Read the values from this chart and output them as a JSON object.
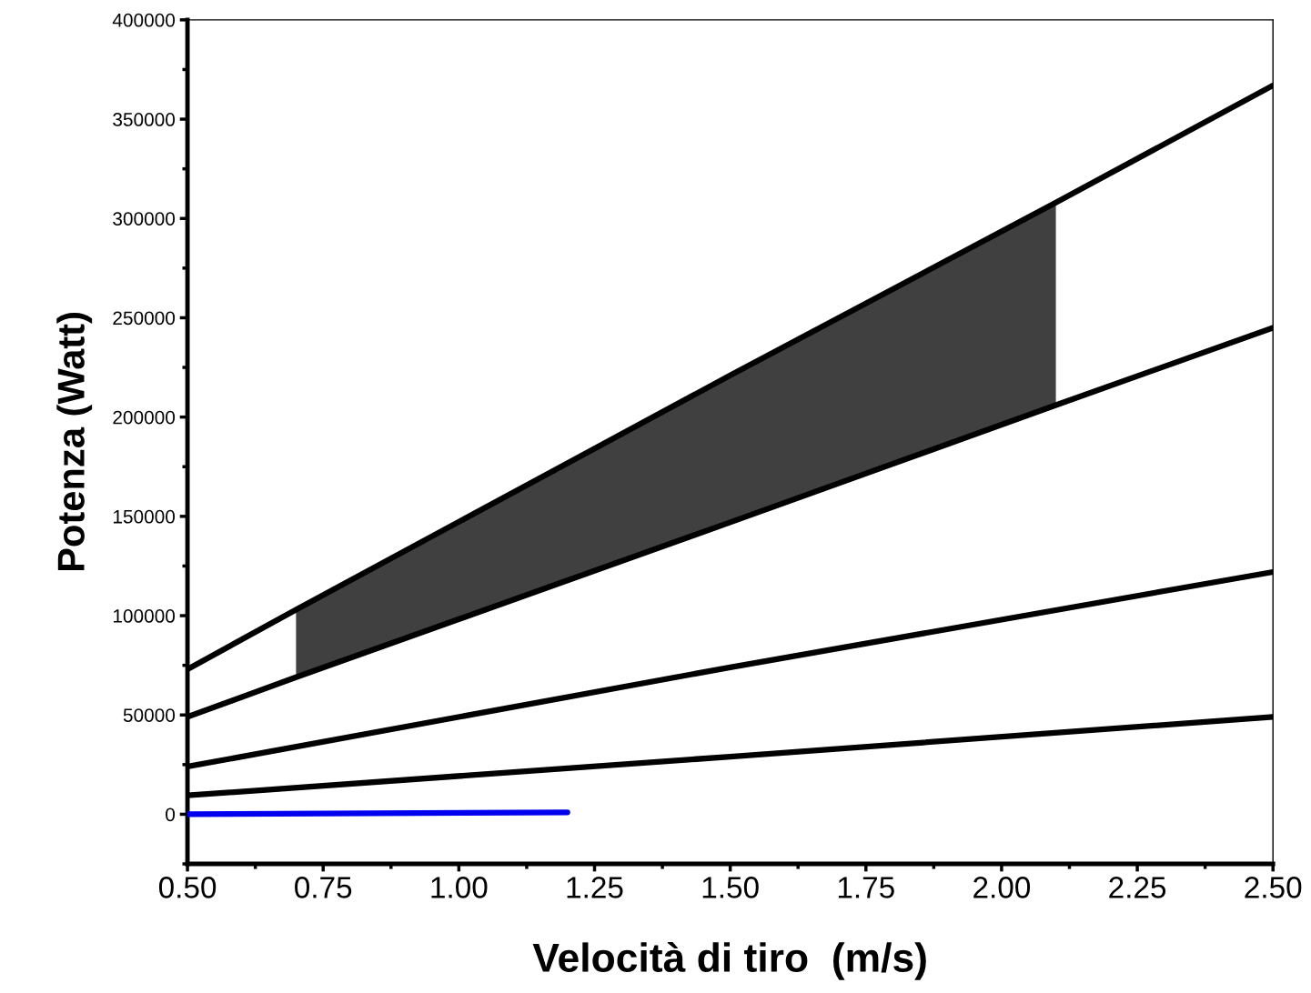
{
  "chart_data": {
    "type": "line",
    "xlabel": "Velocità di tiro  (m/s)",
    "ylabel": "Potenza (Watt)",
    "series": [
      {
        "color": "#000000",
        "x": [
          0.5,
          0.7,
          1.5,
          2.1,
          2.5
        ],
        "values": [
          73000,
          103000,
          221000,
          308000,
          367000
        ],
        "lower": [
          null,
          69000,
          147000,
          206000,
          null
        ],
        "upper": [
          null,
          103000,
          221000,
          308000,
          null
        ]
      },
      {
        "color": "#000000",
        "x": [
          0.5,
          0.7,
          1.5,
          2.1,
          2.5
        ],
        "values": [
          49000,
          69000,
          147000,
          206000,
          245000
        ]
      },
      {
        "color": "#000000",
        "x": [
          0.5,
          1.5,
          2.5
        ],
        "values": [
          24000,
          74000,
          122000
        ]
      },
      {
        "color": "#000000",
        "x": [
          0.5,
          1.5,
          2.5
        ],
        "values": [
          9500,
          29000,
          49000
        ]
      },
      {
        "color": "#0000ee",
        "x": [
          0.5,
          1.2
        ],
        "values": [
          0,
          1000
        ]
      }
    ],
    "xlim": [
      0.5,
      2.5
    ],
    "xticks": [
      {
        "value": 0.5,
        "label": "0.50"
      },
      0.75,
      {
        "value": 1.0,
        "label": "1.00"
      },
      1.25,
      {
        "value": 1.5,
        "label": "1.50"
      },
      1.75,
      {
        "value": 2.0,
        "label": "2.00"
      },
      2.25,
      {
        "value": 2.5,
        "label": "2.50"
      }
    ],
    "ylim": [
      -25000,
      400000
    ],
    "yticks": [
      0,
      50000,
      100000,
      150000,
      200000,
      250000,
      300000,
      350000,
      400000
    ],
    "grid": false,
    "legend": false,
    "marker": "none",
    "line_style": "solid"
  }
}
